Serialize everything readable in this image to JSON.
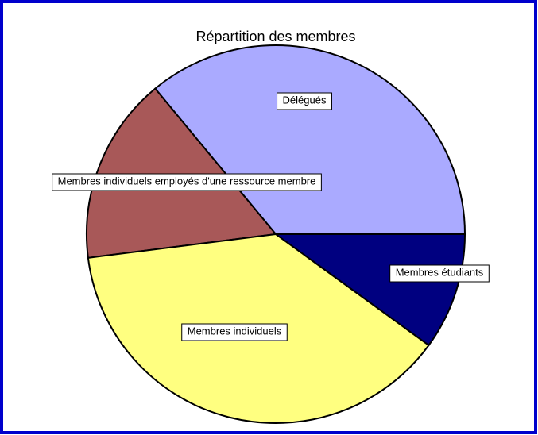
{
  "chart_data": {
    "type": "pie",
    "title": "Répartition des membres",
    "categories": [
      "Délégués",
      "Membres individuels employés d'une ressource membre",
      "Membres individuels",
      "Membres étudiants"
    ],
    "values": [
      36,
      16,
      38,
      10
    ],
    "colors": [
      "#aaaaff",
      "#a85858",
      "#ffff80",
      "#000080"
    ]
  }
}
